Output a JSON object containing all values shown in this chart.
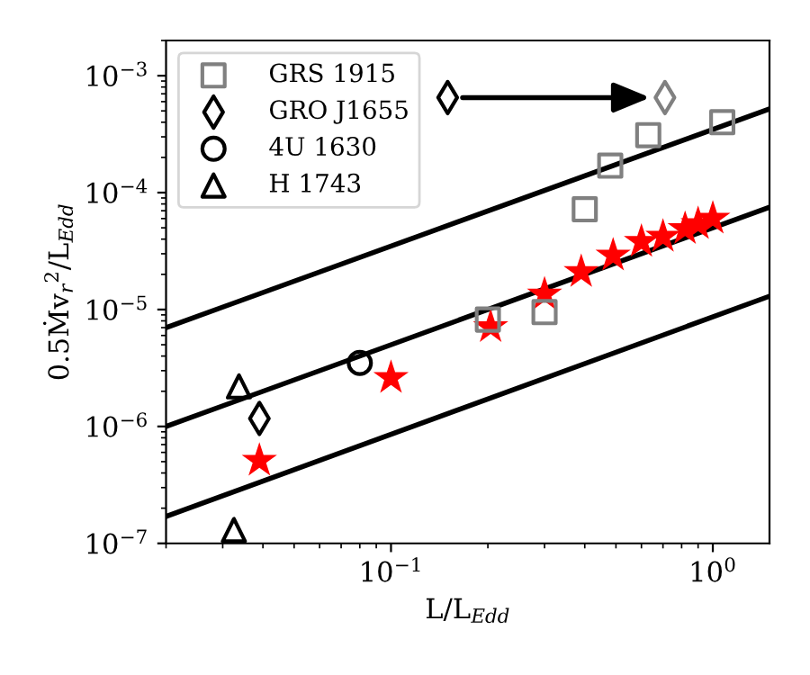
{
  "chart_data": {
    "type": "scatter",
    "xlabel": "L/L$_{Edd}$",
    "ylabel": "0.5Ṁv$_{r}$$^{2}$/L$_{Edd}$",
    "log": "xy",
    "xlim": [
      0.02,
      1.5
    ],
    "ylim": [
      1e-07,
      0.002
    ],
    "xticks": [
      {
        "value": 0.1,
        "label": "10$^{−1}$"
      },
      {
        "value": 1,
        "label": "10$^{0}$"
      }
    ],
    "yticks": [
      {
        "value": 1e-07,
        "label": "10$^{−7}$"
      },
      {
        "value": 1e-06,
        "label": "10$^{−6}$"
      },
      {
        "value": 1e-05,
        "label": "10$^{−5}$"
      },
      {
        "value": 0.0001,
        "label": "10$^{−4}$"
      },
      {
        "value": 0.001,
        "label": "10$^{−3}$"
      }
    ],
    "legend": "top left",
    "grid": false,
    "series": [
      {
        "type": "line",
        "color": "#000000",
        "x": [
          0.02,
          1.5
        ],
        "values": [
          7e-06,
          0.00052
        ]
      },
      {
        "type": "line",
        "color": "#000000",
        "x": [
          0.02,
          1.5
        ],
        "values": [
          1e-06,
          7.5e-05
        ]
      },
      {
        "type": "line",
        "color": "#000000",
        "x": [
          0.02,
          1.5
        ],
        "values": [
          1.7e-07,
          1.3e-05
        ]
      },
      {
        "name": "GRS 1915",
        "marker": "square",
        "color": "#808080",
        "x": [
          0.2,
          0.3,
          0.4,
          0.48,
          0.63,
          1.07
        ],
        "values": [
          8.2e-06,
          9.5e-06,
          7.2e-05,
          0.00017,
          0.00031,
          0.0004
        ]
      },
      {
        "name": "GRO J1655",
        "marker": "diamond",
        "color": "#000000",
        "colors": [
          "#000000",
          "#808080",
          "#000000"
        ],
        "x": [
          0.15,
          0.71,
          0.039
        ],
        "values": [
          0.00065,
          0.00065,
          1.17e-06
        ]
      },
      {
        "name": "4U 1630",
        "marker": "circle",
        "color": "#000000",
        "x": [
          0.08
        ],
        "values": [
          3.5e-06
        ]
      },
      {
        "name": "H 1743",
        "marker": "triangle",
        "color": "#000000",
        "x": [
          0.0337,
          0.0325
        ],
        "values": [
          2.2e-06,
          1.3e-07
        ]
      },
      {
        "marker": "star",
        "color": "#ff0000",
        "x": [
          0.039,
          0.1,
          0.204,
          0.3,
          0.39,
          0.49,
          0.6,
          0.7,
          0.82,
          0.9,
          1.0
        ],
        "values": [
          5.1e-07,
          2.6e-06,
          7.1e-06,
          1.35e-05,
          2.1e-05,
          2.9e-05,
          3.8e-05,
          4.2e-05,
          4.9e-05,
          5.4e-05,
          6e-05
        ]
      }
    ]
  }
}
